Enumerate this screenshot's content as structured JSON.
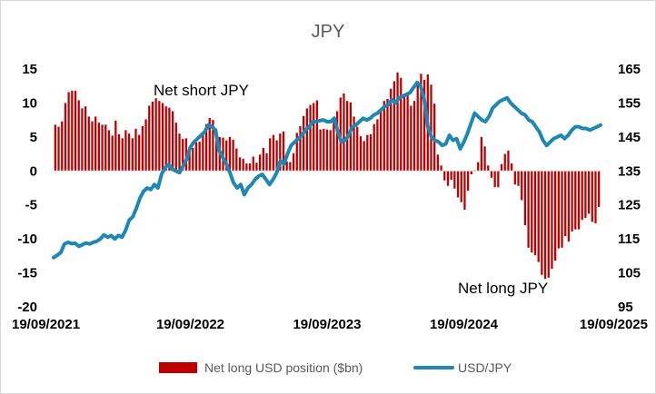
{
  "chart_data": {
    "type": "bar+line",
    "title": "JPY",
    "x_tick_labels": [
      "19/09/2021",
      "19/09/2022",
      "19/09/2023",
      "19/09/2024",
      "19/09/2025"
    ],
    "y_left": {
      "ticks": [
        15,
        10,
        5,
        0,
        -5,
        -10,
        -15,
        -20
      ],
      "range": [
        -20,
        15
      ]
    },
    "y_right": {
      "ticks": [
        165,
        155,
        145,
        135,
        125,
        115,
        105,
        95
      ],
      "range": [
        95,
        165
      ]
    },
    "annotations": {
      "top": "Net short JPY",
      "bottom": "Net long JPY"
    },
    "legend": {
      "placement": "bottom"
    },
    "colors": {
      "bars": "#c00000",
      "line": "#1d87b5"
    },
    "series": [
      {
        "name": "Net long USD position ($bn)",
        "kind": "bar",
        "axis": "left",
        "date_range": [
          "2021-09-19",
          "2025-09-19"
        ],
        "values": [
          6.8,
          6.5,
          7.3,
          10.0,
          11.6,
          11.8,
          11.8,
          10.4,
          9.2,
          9.5,
          8.0,
          7.3,
          8.0,
          7.1,
          6.8,
          6.8,
          6.0,
          5.2,
          7.4,
          5.4,
          4.8,
          6.0,
          5.5,
          4.8,
          6.2,
          5.3,
          6.6,
          7.6,
          9.6,
          10.2,
          10.7,
          10.3,
          10.0,
          9.5,
          9.3,
          8.8,
          7.1,
          5.5,
          4.7,
          4.8,
          3.5,
          3.4,
          4.2,
          4.3,
          5.5,
          6.9,
          7.8,
          7.5,
          6.0,
          5.0,
          4.9,
          4.5,
          5.0,
          4.6,
          3.3,
          2.0,
          1.8,
          1.1,
          1.1,
          2.1,
          1.2,
          2.4,
          3.4,
          2.6,
          4.8,
          5.3,
          4.5,
          5.5,
          5.8,
          1.4,
          1.3,
          2.6,
          5.6,
          6.6,
          8.1,
          9.2,
          9.7,
          10.0,
          10.4,
          6.1,
          6.2,
          6.1,
          6.0,
          7.4,
          8.8,
          10.8,
          11.4,
          10.3,
          10.1,
          8.0,
          6.5,
          5.1,
          4.4,
          5.3,
          5.4,
          6.9,
          7.6,
          8.8,
          10.3,
          10.6,
          12.1,
          13.2,
          14.5,
          13.7,
          11.2,
          11.4,
          9.6,
          10.3,
          13.2,
          14.3,
          13.4,
          14.2,
          12.7,
          9.9,
          2.4,
          0.8,
          -1.4,
          -2.2,
          -1.3,
          -2.6,
          -3.9,
          -4.6,
          -5.7,
          -2.9,
          -0.5,
          0.1,
          1.3,
          5.0,
          3.6,
          0.8,
          -1.0,
          -2.4,
          -2.4,
          1.0,
          2.5,
          3.0,
          1.1,
          -2.0,
          -2.2,
          -4.3,
          -8.0,
          -11.3,
          -12.0,
          -12.4,
          -13.4,
          -15.3,
          -15.9,
          -15.7,
          -14.4,
          -13.2,
          -11.4,
          -11.3,
          -9.6,
          -10.4,
          -8.9,
          -8.6,
          -8.6,
          -7.2,
          -6.9,
          -6.3,
          -7.5,
          -7.7,
          -5.3
        ]
      },
      {
        "name": "USD/JPY",
        "kind": "line",
        "axis": "right",
        "date_range": [
          "2021-09-19",
          "2025-09-19"
        ],
        "values": [
          109.5,
          110.2,
          111.0,
          113.5,
          114.0,
          113.6,
          113.7,
          112.8,
          113.3,
          113.8,
          113.5,
          114.0,
          114.3,
          115.0,
          116.2,
          115.5,
          116.0,
          115.0,
          116.0,
          115.5,
          117.5,
          120.5,
          121.5,
          124.0,
          127.0,
          129.0,
          130.0,
          129.5,
          131.0,
          130.0,
          134.0,
          136.0,
          137.0,
          135.5,
          135.0,
          134.5,
          136.5,
          138.5,
          142.0,
          143.5,
          144.5,
          145.5,
          146.5,
          148.5,
          148.0,
          147.0,
          141.0,
          139.0,
          137.0,
          134.5,
          131.5,
          130.0,
          131.0,
          128.0,
          130.0,
          131.0,
          132.5,
          133.5,
          134.0,
          132.5,
          131.0,
          132.5,
          134.5,
          138.0,
          137.0,
          140.0,
          142.5,
          143.5,
          144.5,
          145.5,
          147.0,
          148.0,
          149.5,
          149.5,
          149.8,
          150.0,
          149.5,
          149.5,
          150.5,
          146.5,
          143.5,
          144.0,
          145.5,
          148.0,
          148.5,
          149.5,
          150.5,
          150.0,
          150.5,
          151.5,
          152.0,
          153.0,
          154.0,
          154.5,
          156.0,
          155.0,
          156.5,
          157.0,
          157.5,
          158.0,
          159.5,
          161.0,
          160.0,
          156.0,
          148.0,
          145.0,
          144.0,
          143.5,
          142.5,
          143.0,
          145.5,
          144.0,
          144.5,
          141.5,
          143.5,
          146.0,
          149.0,
          152.0,
          151.0,
          150.0,
          149.5,
          151.0,
          153.5,
          154.5,
          155.5,
          156.0,
          156.5,
          155.0,
          154.0,
          153.0,
          152.0,
          151.5,
          150.0,
          149.5,
          148.0,
          146.5,
          144.0,
          142.5,
          143.5,
          144.5,
          145.0,
          145.5,
          144.5,
          145.5,
          147.0,
          148.0,
          148.0,
          147.5,
          147.5,
          147.0,
          147.5,
          148.0,
          148.5
        ]
      }
    ]
  }
}
